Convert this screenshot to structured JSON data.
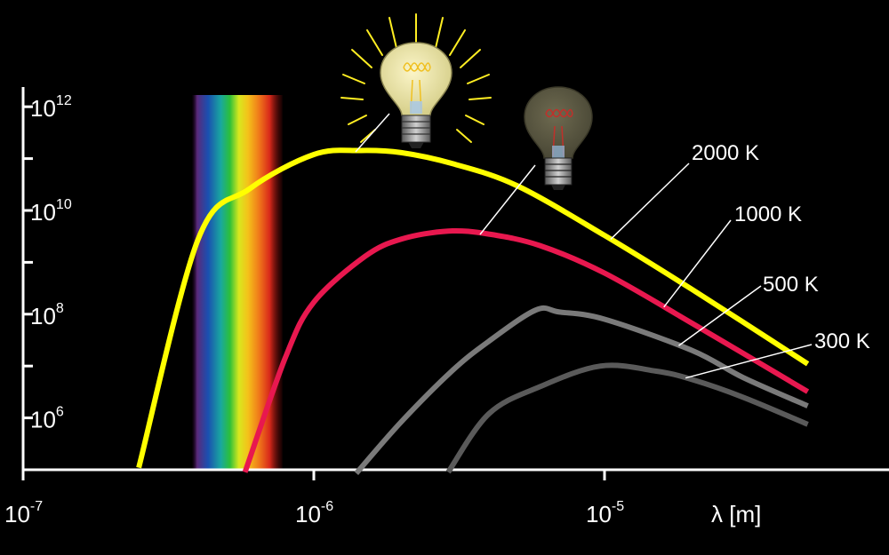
{
  "chart_data": {
    "type": "line",
    "title": "",
    "xlabel": "λ [m]",
    "ylabel": "",
    "x_scale": "log",
    "y_scale": "log",
    "xlim": [
      1e-07,
      0.0001
    ],
    "ylim": [
      100000,
      10000000000000
    ],
    "grid": false,
    "x_ticks": [
      {
        "value": 1e-07,
        "base": "10",
        "exp": "-7"
      },
      {
        "value": 1e-06,
        "base": "10",
        "exp": "-6"
      },
      {
        "value": 1e-05,
        "base": "10",
        "exp": "-5"
      }
    ],
    "y_ticks": [
      {
        "value": 1000000,
        "base": "10",
        "exp": "6"
      },
      {
        "value": 100000000,
        "base": "10",
        "exp": "8"
      },
      {
        "value": 10000000000,
        "base": "10",
        "exp": "10"
      },
      {
        "value": 1000000000000,
        "base": "10",
        "exp": "12"
      }
    ],
    "y_minor_ticks": [
      10000000,
      1000000000,
      100000000000
    ],
    "visible_band": {
      "from": 3.8e-07,
      "to": 7.8e-07
    },
    "series": [
      {
        "name": "2000 K",
        "T": 2000,
        "color": "#ffff00",
        "points": [
          [
            2.5e-07,
            110000.0
          ],
          [
            4e-07,
            2800000000.0
          ],
          [
            6e-07,
            26000000000.0
          ],
          [
            1e-06,
            120000000000.0
          ],
          [
            1.45e-06,
            143000000000.0
          ],
          [
            2e-06,
            130000000000.0
          ],
          [
            3e-06,
            80000000000.0
          ],
          [
            5e-06,
            30000000000.0
          ],
          [
            1e-05,
            3300000000.0
          ],
          [
            2e-05,
            300000000.0
          ],
          [
            5e-05,
            11000000.0
          ]
        ]
      },
      {
        "name": "1000 K",
        "T": 1000,
        "color": "#e8184f",
        "points": [
          [
            5.8e-07,
            90000.0
          ],
          [
            8e-07,
            15000000.0
          ],
          [
            1e-06,
            170000000.0
          ],
          [
            1.5e-06,
            1300000000.0
          ],
          [
            2e-06,
            2800000000.0
          ],
          [
            2.9e-06,
            4000000000.0
          ],
          [
            4e-06,
            3500000000.0
          ],
          [
            6e-06,
            2100000000.0
          ],
          [
            1e-05,
            620000000.0
          ],
          [
            2e-05,
            67000000.0
          ],
          [
            5e-05,
            3200000.0
          ]
        ]
      },
      {
        "name": "500 K",
        "T": 500,
        "color": "#7a7a7a",
        "points": [
          [
            1.4e-06,
            80000.0
          ],
          [
            2e-06,
            840000.0
          ],
          [
            3e-06,
            8200000.0
          ],
          [
            4e-06,
            30000000.0
          ],
          [
            5.8e-06,
            120000000.0
          ],
          [
            7e-06,
            110000000.0
          ],
          [
            1e-05,
            80000000.0
          ],
          [
            2e-05,
            20000000.0
          ],
          [
            3e-05,
            6000000.0
          ],
          [
            5e-05,
            1700000.0
          ]
        ]
      },
      {
        "name": "300 K",
        "T": 300,
        "color": "#5a5a5a",
        "points": [
          [
            2.9e-06,
            90000.0
          ],
          [
            4e-06,
            1200000.0
          ],
          [
            6e-06,
            4000000.0
          ],
          [
            9.7e-06,
            10000000.0
          ],
          [
            1.5e-05,
            8000000.0
          ],
          [
            2e-05,
            5500000.0
          ],
          [
            3e-05,
            2500000.0
          ],
          [
            5e-05,
            750000.0
          ]
        ]
      }
    ],
    "annotations": [
      {
        "text": "2000 K",
        "series": 0,
        "at_x": 1.05e-05
      },
      {
        "text": "1000 K",
        "series": 1,
        "at_x": 1.6e-05
      },
      {
        "text": "500 K",
        "series": 2,
        "at_x": 1.8e-05
      },
      {
        "text": "300 K",
        "series": 3,
        "at_x": 1.9e-05
      }
    ],
    "icons": [
      "bright-lightbulb-icon",
      "dim-lightbulb-icon"
    ]
  }
}
